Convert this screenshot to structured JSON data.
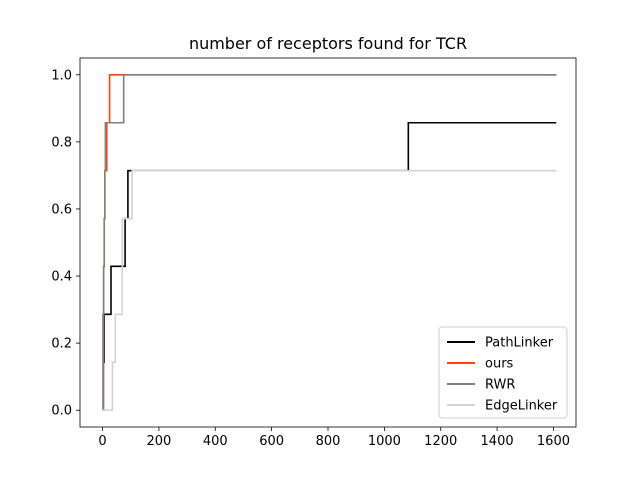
{
  "chart_data": {
    "type": "line",
    "title": "number of receptors found for TCR",
    "xlabel": "",
    "ylabel": "",
    "xlim": [
      -80,
      1680
    ],
    "ylim": [
      -0.05,
      1.05
    ],
    "xticks": [
      0,
      200,
      400,
      600,
      800,
      1000,
      1200,
      1400,
      1600
    ],
    "yticks": [
      0.0,
      0.2,
      0.4,
      0.6,
      0.8,
      1.0
    ],
    "xtick_labels": [
      "0",
      "200",
      "400",
      "600",
      "800",
      "1000",
      "1200",
      "1400",
      "1600"
    ],
    "ytick_labels": [
      "0.0",
      "0.2",
      "0.4",
      "0.6",
      "0.8",
      "1.0"
    ],
    "grid": false,
    "legend_position": "bottom-right",
    "step": true,
    "series": [
      {
        "name": "PathLinker",
        "color": "#000000",
        "x": [
          0,
          3,
          5,
          10,
          20,
          30,
          40,
          50,
          60,
          70,
          80,
          85,
          90,
          95,
          100,
          1080,
          1085,
          1610
        ],
        "y": [
          0.0,
          0.143,
          0.286,
          0.286,
          0.286,
          0.429,
          0.429,
          0.429,
          0.429,
          0.429,
          0.571,
          0.571,
          0.714,
          0.714,
          0.714,
          0.714,
          0.857,
          0.857
        ]
      },
      {
        "name": "ours",
        "color": "#ff4500",
        "x": [
          0,
          2,
          4,
          6,
          8,
          10,
          15,
          20,
          25,
          30,
          1610
        ],
        "y": [
          0.0,
          0.286,
          0.429,
          0.571,
          0.714,
          0.714,
          0.857,
          0.857,
          1.0,
          1.0,
          1.0
        ]
      },
      {
        "name": "RWR",
        "color": "#808080",
        "x": [
          0,
          2,
          4,
          6,
          8,
          10,
          20,
          70,
          75,
          1610
        ],
        "y": [
          0.0,
          0.286,
          0.429,
          0.571,
          0.714,
          0.857,
          0.857,
          0.857,
          1.0,
          1.0
        ]
      },
      {
        "name": "EdgeLinker",
        "color": "#d3d3d3",
        "x": [
          0,
          30,
          35,
          40,
          45,
          50,
          70,
          75,
          80,
          90,
          100,
          105,
          1610
        ],
        "y": [
          0.0,
          0.0,
          0.143,
          0.143,
          0.286,
          0.286,
          0.571,
          0.571,
          0.571,
          0.571,
          0.571,
          0.714,
          0.714
        ]
      }
    ]
  }
}
